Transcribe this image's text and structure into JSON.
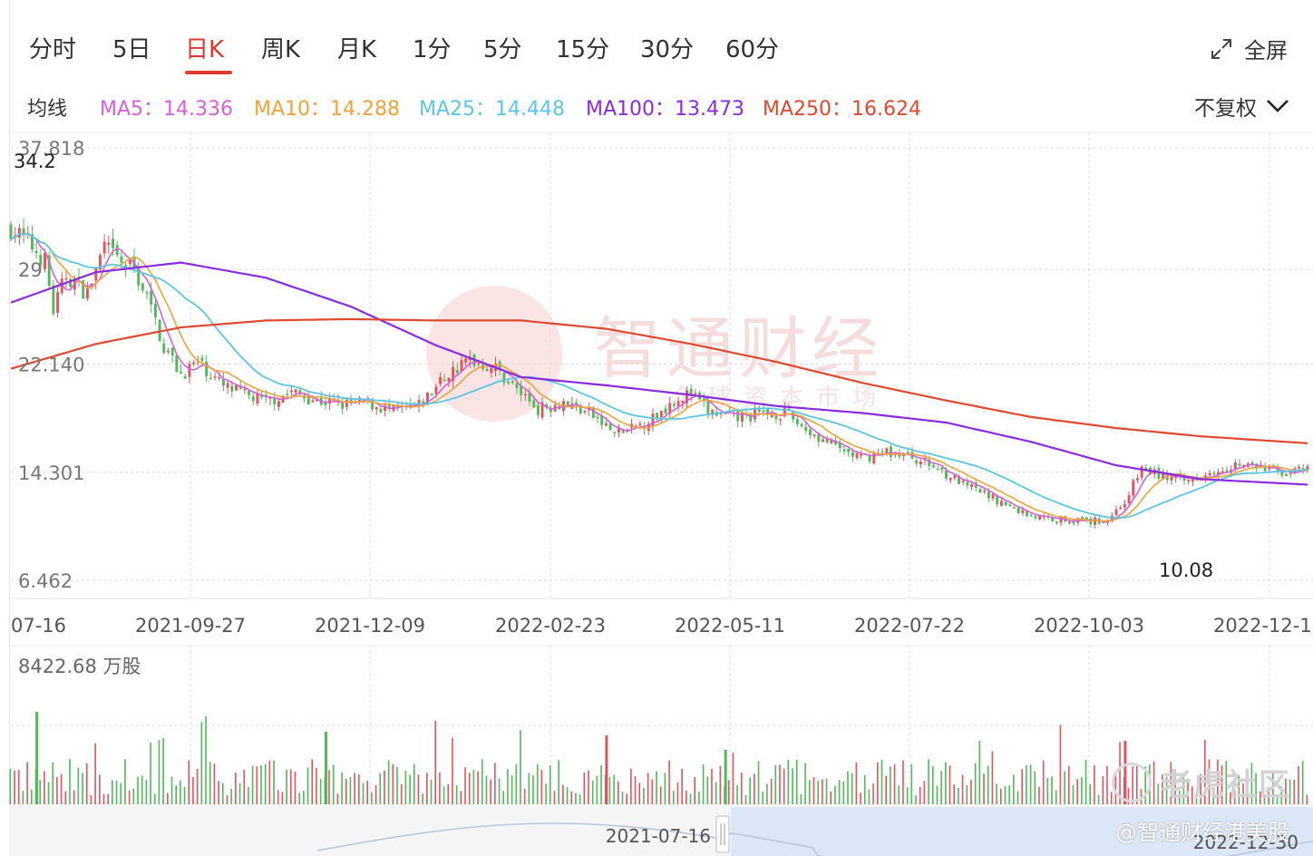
{
  "tabs": [
    "分时",
    "5日",
    "日K",
    "周K",
    "月K",
    "1分",
    "5分",
    "15分",
    "30分",
    "60分"
  ],
  "active_tab": "日K",
  "fullscreen_label": "全屏",
  "ma_bar": {
    "label": "均线",
    "items": [
      {
        "text": "MA5：14.336",
        "color": "#d660d8"
      },
      {
        "text": "MA10：14.288",
        "color": "#f0a23b"
      },
      {
        "text": "MA25：14.448",
        "color": "#5cc5e4"
      },
      {
        "text": "MA100：13.473",
        "color": "#8a2be2"
      },
      {
        "text": "MA250：16.624",
        "color": "#e0482f"
      }
    ]
  },
  "adjust_label": "不复权",
  "colors": {
    "up": "#e05560",
    "down": "#52b85a",
    "accent": "#e0382f"
  },
  "watermark": {
    "title": "智通财经",
    "subtitle": "全球资本市场"
  },
  "corner_watermark": "老虎社区",
  "credit": "@智通财经港美股",
  "chart_data": {
    "type": "candlestick",
    "y_axis_ticks": [
      "37.818",
      "22.140",
      "14.301",
      "6.462"
    ],
    "y_axis_hidden_label": "29",
    "price_marks": {
      "high": "34.2",
      "low": "10.08"
    },
    "x_axis_labels": [
      "07-16",
      "2021-09-27",
      "2021-12-09",
      "2022-02-23",
      "2022-05-11",
      "2022-07-22",
      "2022-10-03",
      "2022-12-1"
    ],
    "volume_max_label": "8422.68 万股",
    "range_selector": {
      "start": "2021-07-16",
      "end": "2022-12-30"
    },
    "ylim": [
      6.462,
      37.818
    ],
    "trend_path": [
      [
        0,
        32.0
      ],
      [
        4,
        31.0
      ],
      [
        8,
        29.6
      ],
      [
        10,
        26.0
      ],
      [
        13,
        28.6
      ],
      [
        18,
        27.3
      ],
      [
        22,
        30.6
      ],
      [
        26,
        29.4
      ],
      [
        29,
        29.0
      ],
      [
        32,
        27.0
      ],
      [
        36,
        23.4
      ],
      [
        40,
        21.4
      ],
      [
        44,
        22.3
      ],
      [
        50,
        20.5
      ],
      [
        55,
        19.9
      ],
      [
        60,
        19.4
      ],
      [
        66,
        20.1
      ],
      [
        72,
        19.5
      ],
      [
        78,
        19.2
      ],
      [
        84,
        19.3
      ],
      [
        90,
        18.7
      ],
      [
        96,
        19.1
      ],
      [
        102,
        21.2
      ],
      [
        108,
        22.5
      ],
      [
        114,
        21.8
      ],
      [
        118,
        20.6
      ],
      [
        124,
        18.9
      ],
      [
        130,
        19.4
      ],
      [
        136,
        18.6
      ],
      [
        142,
        17.1
      ],
      [
        146,
        17.4
      ],
      [
        152,
        18.4
      ],
      [
        156,
        19.6
      ],
      [
        160,
        20.0
      ],
      [
        164,
        18.7
      ],
      [
        170,
        18.2
      ],
      [
        176,
        18.5
      ],
      [
        182,
        18.6
      ],
      [
        188,
        17.2
      ],
      [
        194,
        16.1
      ],
      [
        200,
        15.3
      ],
      [
        206,
        15.8
      ],
      [
        212,
        15.4
      ],
      [
        218,
        14.6
      ],
      [
        224,
        13.4
      ],
      [
        230,
        12.6
      ],
      [
        236,
        11.6
      ],
      [
        242,
        11.0
      ],
      [
        248,
        10.9
      ],
      [
        254,
        10.7
      ],
      [
        258,
        10.9
      ],
      [
        262,
        12.2
      ],
      [
        266,
        14.6
      ],
      [
        270,
        14.1
      ],
      [
        276,
        13.6
      ],
      [
        282,
        14.4
      ],
      [
        288,
        14.9
      ],
      [
        294,
        14.6
      ],
      [
        300,
        14.3
      ],
      [
        305,
        14.4
      ]
    ],
    "ma100_path": [
      [
        0,
        26.6
      ],
      [
        20,
        28.8
      ],
      [
        40,
        29.5
      ],
      [
        60,
        28.4
      ],
      [
        80,
        26.3
      ],
      [
        100,
        23.5
      ],
      [
        120,
        21.2
      ],
      [
        140,
        20.6
      ],
      [
        160,
        19.9
      ],
      [
        180,
        19.1
      ],
      [
        200,
        18.6
      ],
      [
        220,
        17.9
      ],
      [
        240,
        16.5
      ],
      [
        260,
        14.8
      ],
      [
        280,
        13.8
      ],
      [
        305,
        13.4
      ]
    ],
    "ma250_path": [
      [
        0,
        21.8
      ],
      [
        20,
        23.6
      ],
      [
        40,
        24.8
      ],
      [
        60,
        25.3
      ],
      [
        80,
        25.4
      ],
      [
        100,
        25.3
      ],
      [
        120,
        25.3
      ],
      [
        140,
        24.7
      ],
      [
        160,
        23.6
      ],
      [
        180,
        22.3
      ],
      [
        200,
        20.8
      ],
      [
        220,
        19.5
      ],
      [
        240,
        18.3
      ],
      [
        260,
        17.5
      ],
      [
        280,
        16.9
      ],
      [
        305,
        16.4
      ]
    ]
  }
}
